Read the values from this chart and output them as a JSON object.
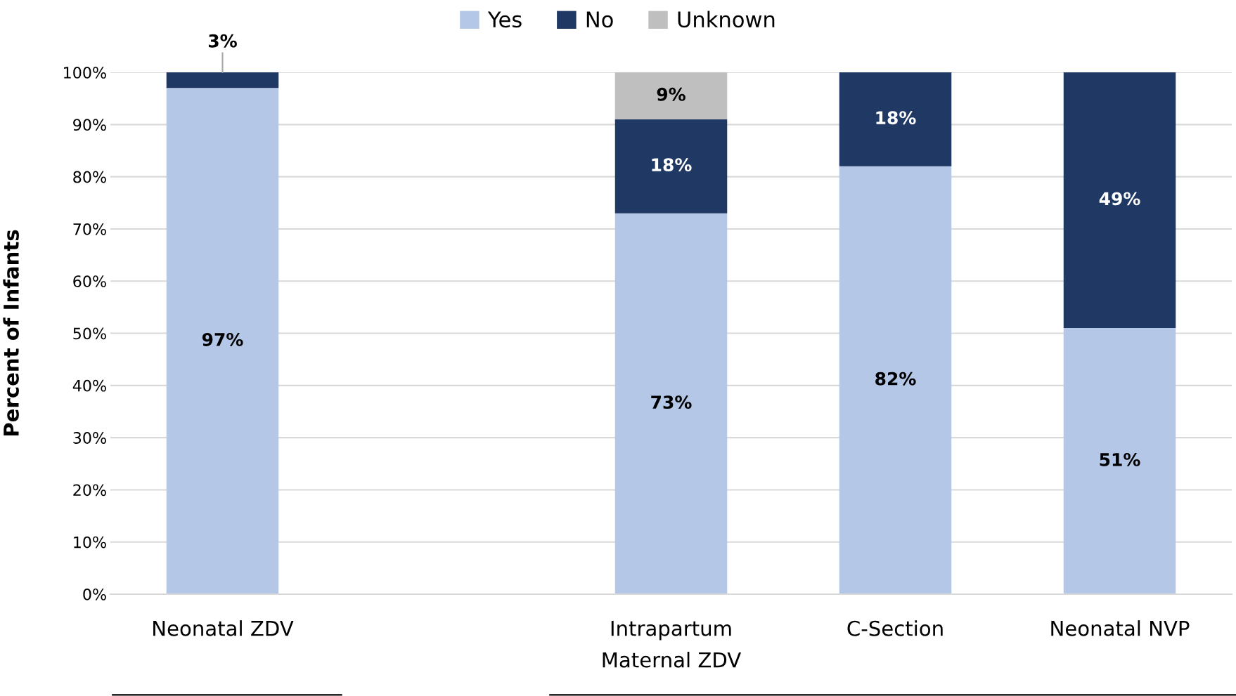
{
  "chart_data": {
    "type": "bar",
    "stacked": true,
    "categories": [
      "Neonatal ZDV",
      null,
      "Intrapartum Maternal ZDV",
      "C-Section",
      "Neonatal NVP"
    ],
    "series": [
      {
        "name": "Yes",
        "color": "#b4c7e7",
        "values": [
          97,
          null,
          73,
          82,
          51
        ],
        "value_labels": [
          "97%",
          null,
          "73%",
          "82%",
          "51%"
        ]
      },
      {
        "name": "No",
        "color": "#203864",
        "values": [
          3,
          null,
          18,
          18,
          49
        ],
        "value_labels": [
          "3%",
          null,
          "18%",
          "18%",
          "49%"
        ]
      },
      {
        "name": "Unknown",
        "color": "#bfbfbf",
        "values": [
          null,
          null,
          9,
          null,
          null
        ],
        "value_labels": [
          null,
          null,
          "9%",
          null,
          null
        ]
      }
    ],
    "ylabel": "Percent of Infants",
    "ylim": [
      0,
      100
    ],
    "yticks": [
      {
        "value": 0,
        "label": "0%"
      },
      {
        "value": 10,
        "label": "10%"
      },
      {
        "value": 20,
        "label": "20%"
      },
      {
        "value": 30,
        "label": "30%"
      },
      {
        "value": 40,
        "label": "40%"
      },
      {
        "value": 50,
        "label": "50%"
      },
      {
        "value": 60,
        "label": "60%"
      },
      {
        "value": 70,
        "label": "70%"
      },
      {
        "value": 80,
        "label": "80%"
      },
      {
        "value": 90,
        "label": "90%"
      },
      {
        "value": 100,
        "label": "100%"
      }
    ],
    "grid": "y",
    "legend": "top"
  }
}
